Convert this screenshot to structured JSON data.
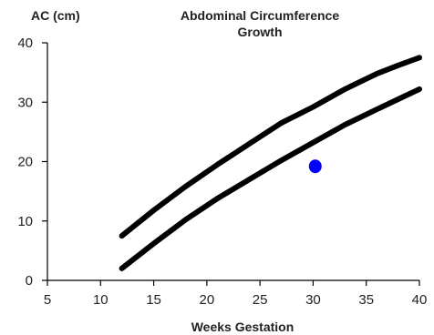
{
  "chart_data": {
    "type": "line",
    "title": "Abdominal Circumference",
    "subtitle": "Growth",
    "xlabel": "Weeks Gestation",
    "ylabel": "AC (cm)",
    "xlim": [
      5,
      40
    ],
    "ylim": [
      0,
      40
    ],
    "xticks": [
      5,
      10,
      15,
      20,
      25,
      30,
      35,
      40
    ],
    "yticks": [
      0,
      10,
      20,
      30,
      40
    ],
    "grid": false,
    "series": [
      {
        "key": "upper",
        "color": "#000000",
        "points": [
          [
            12,
            7.5
          ],
          [
            15,
            11.8
          ],
          [
            18,
            15.8
          ],
          [
            21,
            19.5
          ],
          [
            24,
            23.0
          ],
          [
            27,
            26.5
          ],
          [
            30,
            29.2
          ],
          [
            33,
            32.2
          ],
          [
            36,
            34.8
          ],
          [
            38,
            36.2
          ],
          [
            40,
            37.5
          ]
        ]
      },
      {
        "key": "lower",
        "color": "#000000",
        "points": [
          [
            12,
            2.0
          ],
          [
            15,
            6.2
          ],
          [
            18,
            10.2
          ],
          [
            21,
            13.8
          ],
          [
            24,
            17.0
          ],
          [
            27,
            20.2
          ],
          [
            30,
            23.2
          ],
          [
            33,
            26.2
          ],
          [
            36,
            28.8
          ],
          [
            38,
            30.5
          ],
          [
            40,
            32.2
          ]
        ]
      }
    ],
    "markers": [
      {
        "x": 30.2,
        "y": 19.2,
        "color": "#0000ff"
      }
    ]
  }
}
